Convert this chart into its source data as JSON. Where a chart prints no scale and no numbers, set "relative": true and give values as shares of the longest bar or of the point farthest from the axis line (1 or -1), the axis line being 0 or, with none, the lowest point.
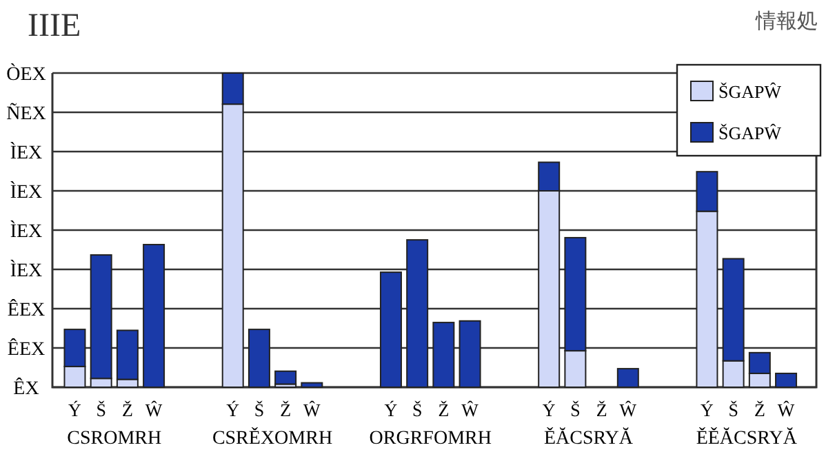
{
  "chart_data": {
    "type": "bar",
    "stacked": true,
    "relative": true,
    "title": "IIIE",
    "annotations": [
      "CSROMRH",
      "CSRĚXOMRH",
      "ORGRFOMRH",
      "ĚĂCSRYĂ",
      "ĚĚĂCSRYĂ",
      "情報処",
      "ÊX",
      "ÊEX",
      "ÊEX",
      "ÌEX",
      "ÌEX",
      "ÌEX",
      "ÌEX",
      "ÑEX",
      "ÒEX"
    ],
    "categories": [
      "Ý",
      "Š",
      "Ž",
      "Ŵ",
      "Ý",
      "Š",
      "Ž",
      "Ŵ",
      "Ý",
      "Š",
      "Ž",
      "Ŵ",
      "Ý",
      "Š",
      "Ž",
      "Ŵ",
      "Ý",
      "Š",
      "Ž",
      "Ŵ"
    ],
    "series": [
      {
        "name": "ŠGAPŴ",
        "color": "#d0d8f8",
        "values": [
          0.066,
          0.028,
          0.025,
          0,
          0.901,
          0,
          0.01,
          0,
          0,
          0,
          0,
          0,
          0.625,
          0.116,
          0,
          0,
          0.56,
          0.084,
          0.044,
          0
        ]
      },
      {
        "name": "ŠGAPŴ",
        "color": "#1a3aa8",
        "values": [
          0.118,
          0.393,
          0.156,
          0.454,
          0.099,
          0.184,
          0.041,
          0.014,
          0.366,
          0.469,
          0.206,
          0.211,
          0.091,
          0.36,
          0,
          0.059,
          0.126,
          0.325,
          0.066,
          0.044
        ]
      }
    ],
    "grid": "y",
    "legend": "top right"
  }
}
